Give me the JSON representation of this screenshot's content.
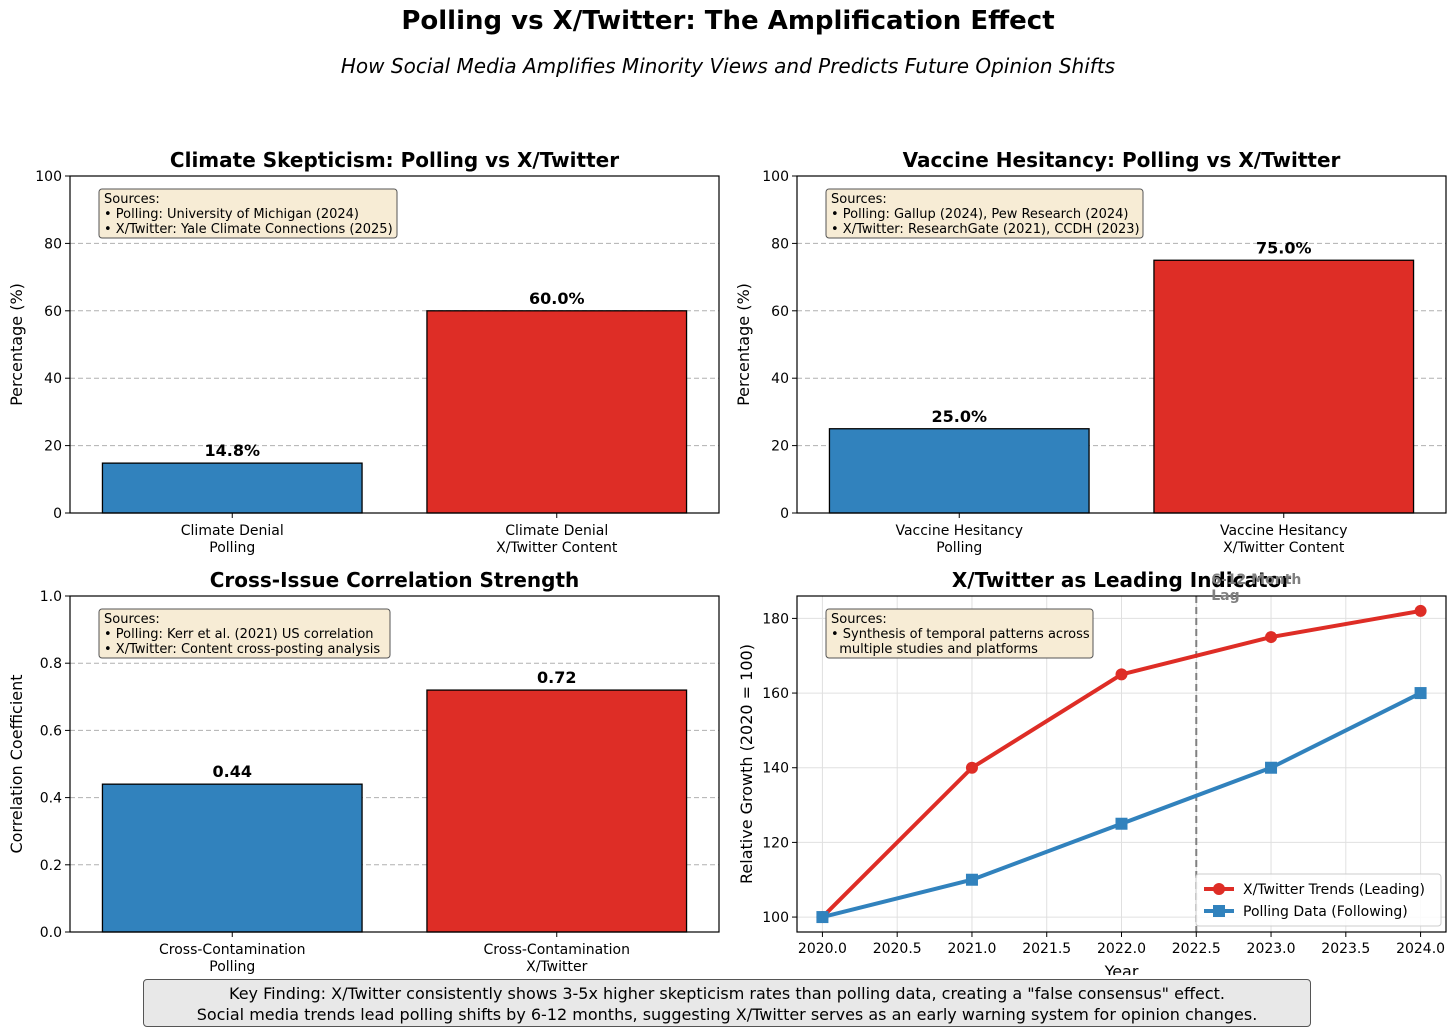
{
  "header": {
    "title": "Polling vs X/Twitter: The Amplification Effect",
    "subtitle": "How Social Media Amplifies Minority Views and Predicts Future Opinion Shifts"
  },
  "colors": {
    "polling": "#3182bd",
    "twitter": "#de2d26",
    "source_box": "#f7ecd5",
    "annotation": "#808080"
  },
  "chart_data": [
    {
      "type": "bar",
      "title": "Climate Skepticism: Polling vs X/Twitter",
      "ylabel": "Percentage (%)",
      "ylim": [
        0,
        100
      ],
      "yticks": [
        "0",
        "20",
        "40",
        "60",
        "80",
        "100"
      ],
      "ytick_values": [
        0,
        20,
        40,
        60,
        80,
        100
      ],
      "categories": [
        [
          "Climate Denial",
          "Polling"
        ],
        [
          "Climate Denial",
          "X/Twitter Content"
        ]
      ],
      "values": [
        14.8,
        60.0
      ],
      "value_labels": [
        "14.8%",
        "60.0%"
      ],
      "grid": "y-dashed",
      "sources": [
        "Sources:",
        "• Polling: University of Michigan (2024)",
        "• X/Twitter: Yale Climate Connections (2025)"
      ]
    },
    {
      "type": "bar",
      "title": "Vaccine Hesitancy: Polling vs X/Twitter",
      "ylabel": "Percentage (%)",
      "ylim": [
        0,
        100
      ],
      "yticks": [
        "0",
        "20",
        "40",
        "60",
        "80",
        "100"
      ],
      "ytick_values": [
        0,
        20,
        40,
        60,
        80,
        100
      ],
      "categories": [
        [
          "Vaccine Hesitancy",
          "Polling"
        ],
        [
          "Vaccine Hesitancy",
          "X/Twitter Content"
        ]
      ],
      "values": [
        25.0,
        75.0
      ],
      "value_labels": [
        "25.0%",
        "75.0%"
      ],
      "grid": "y-dashed",
      "sources": [
        "Sources:",
        "• Polling: Gallup (2024), Pew Research (2024)",
        "• X/Twitter: ResearchGate (2021), CCDH (2023)"
      ]
    },
    {
      "type": "bar",
      "title": "Cross-Issue Correlation Strength",
      "ylabel": "Correlation Coefficient",
      "ylim": [
        0,
        1.0
      ],
      "yticks": [
        "0.0",
        "0.2",
        "0.4",
        "0.6",
        "0.8",
        "1.0"
      ],
      "ytick_values": [
        0,
        0.2,
        0.4,
        0.6,
        0.8,
        1.0
      ],
      "categories": [
        [
          "Cross-Contamination",
          "Polling"
        ],
        [
          "Cross-Contamination",
          "X/Twitter"
        ]
      ],
      "values": [
        0.44,
        0.72
      ],
      "value_labels": [
        "0.44",
        "0.72"
      ],
      "grid": "y-dashed",
      "sources": [
        "Sources:",
        "• Polling: Kerr et al. (2021) US correlation",
        "• X/Twitter: Content cross-posting analysis"
      ]
    },
    {
      "type": "line",
      "title": "X/Twitter as Leading Indicator",
      "xlabel": "Year",
      "ylabel": "Relative Growth (2020 = 100)",
      "xlim": [
        2019.83,
        2024.17
      ],
      "ylim": [
        96,
        186
      ],
      "xticks": [
        "2020.0",
        "2020.5",
        "2021.0",
        "2021.5",
        "2022.0",
        "2022.5",
        "2023.0",
        "2023.5",
        "2024.0"
      ],
      "xtick_values": [
        2020.0,
        2020.5,
        2021.0,
        2021.5,
        2022.0,
        2022.5,
        2023.0,
        2023.5,
        2024.0
      ],
      "yticks": [
        "100",
        "120",
        "140",
        "160",
        "180"
      ],
      "ytick_values": [
        100,
        120,
        140,
        160,
        180
      ],
      "x": [
        2020,
        2021,
        2022,
        2023,
        2024
      ],
      "series": [
        {
          "name": "X/Twitter Trends (Leading)",
          "values": [
            100,
            140,
            165,
            175,
            182
          ],
          "marker": "circle"
        },
        {
          "name": "Polling Data (Following)",
          "values": [
            100,
            110,
            125,
            140,
            160
          ],
          "marker": "square"
        }
      ],
      "vline": {
        "x": 2022.5,
        "label": [
          "6-12 Month",
          "Lag"
        ]
      },
      "grid": "both",
      "legend": "bottom-right",
      "sources": [
        "Sources:",
        "• Synthesis of temporal patterns across",
        "  multiple studies and platforms"
      ]
    }
  ],
  "key_finding": [
    "Key Finding: X/Twitter consistently shows 3-5x higher skepticism rates than polling data, creating a \"false consensus\" effect.",
    "Social media trends lead polling shifts by 6-12 months, suggesting X/Twitter serves as an early warning system for opinion changes."
  ]
}
